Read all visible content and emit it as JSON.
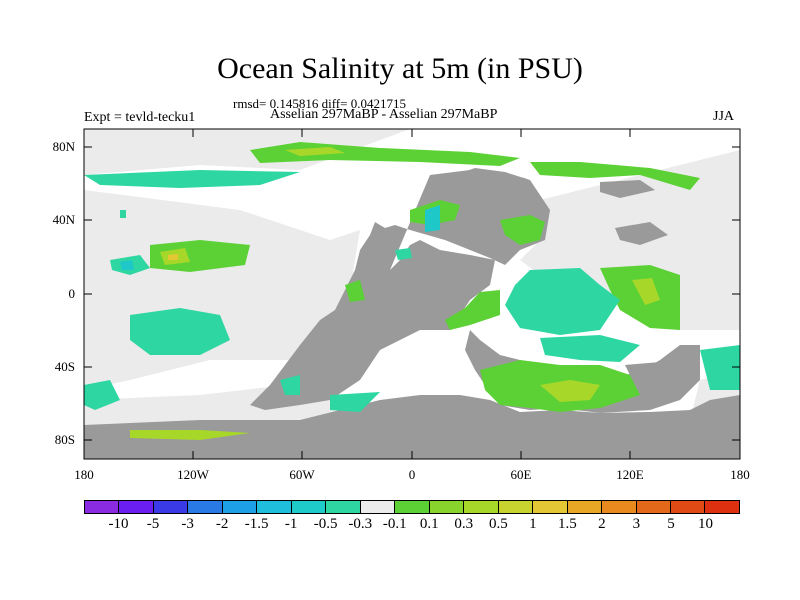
{
  "title": "Ocean Salinity at 5m (in PSU)",
  "stats": "rmsd= 0.145816 diff= 0.0421715",
  "experiment": "Expt = tevld-tecku1",
  "comparison": "Asselian 297MaBP - Asselian 297MaBP",
  "season": "JJA",
  "latitude_labels": [
    "80N",
    "40N",
    "0",
    "40S",
    "80S"
  ],
  "longitude_labels": [
    "180",
    "120W",
    "60W",
    "0",
    "60E",
    "120E",
    "180"
  ],
  "colors": {
    "land": "#9a9a9a",
    "ocean_neutral": "#ebebeb",
    "pos_small": "#5bd135",
    "pos_mid": "#a7d829",
    "pos_high": "#e3c734",
    "neg_small": "#2ed6a2",
    "neg_mid": "#1ec8c8"
  },
  "colorbar": {
    "colors": [
      "#8a2be2",
      "#6a1ff0",
      "#3a3ae6",
      "#2a7ae6",
      "#1ea0e6",
      "#1ebedc",
      "#1ecbc8",
      "#2ed6a2",
      "#ebebeb",
      "#5bd135",
      "#88d42c",
      "#a7d829",
      "#c8d32f",
      "#e3c734",
      "#e8a826",
      "#e88a1e",
      "#e4681a",
      "#e04a14",
      "#dc3010"
    ],
    "labels": [
      "-10",
      "-5",
      "-3",
      "-2",
      "-1.5",
      "-1",
      "-0.5",
      "-0.3",
      "-0.1",
      "0.1",
      "0.3",
      "0.5",
      "1",
      "1.5",
      "2",
      "3",
      "5",
      "10"
    ]
  }
}
